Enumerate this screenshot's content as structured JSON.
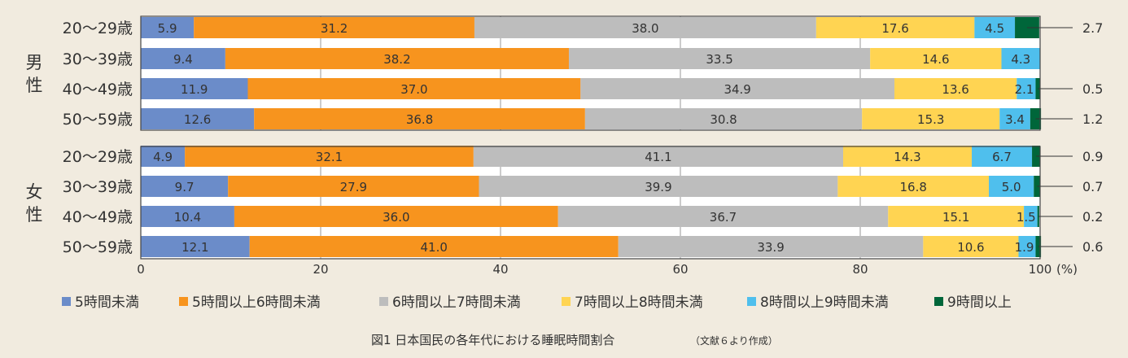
{
  "chart_data": {
    "type": "bar",
    "orientation": "horizontal",
    "stacked": true,
    "title": "図1 日本国民の各年代における睡眠時間割合",
    "source_note": "（文献６より作成）",
    "xlabel": "(%)",
    "xlim": [
      0,
      100
    ],
    "xticks": [
      0,
      20,
      40,
      60,
      80,
      100
    ],
    "grid": true,
    "legend_position": "bottom",
    "groups": [
      {
        "name": "男性",
        "categories": [
          "20〜29歳",
          "30〜39歳",
          "40〜49歳",
          "50〜59歳"
        ]
      },
      {
        "name": "女性",
        "categories": [
          "20〜29歳",
          "30〜39歳",
          "40〜49歳",
          "50〜59歳"
        ]
      }
    ],
    "series": [
      {
        "name": "5時間未満",
        "color": "#6b8cc9",
        "values": [
          [
            5.9,
            9.4,
            11.9,
            12.6
          ],
          [
            4.9,
            9.7,
            10.4,
            12.1
          ]
        ]
      },
      {
        "name": "5時間以上6時間未満",
        "color": "#f7941e",
        "values": [
          [
            31.2,
            38.2,
            37.0,
            36.8
          ],
          [
            32.1,
            27.9,
            36.0,
            41.0
          ]
        ]
      },
      {
        "name": "6時間以上7時間未満",
        "color": "#bdbdbd",
        "values": [
          [
            38.0,
            33.5,
            34.9,
            30.8
          ],
          [
            41.1,
            39.9,
            36.7,
            33.9
          ]
        ]
      },
      {
        "name": "7時間以上8時間未満",
        "color": "#ffd452",
        "values": [
          [
            17.6,
            14.6,
            13.6,
            15.3
          ],
          [
            14.3,
            16.8,
            15.1,
            10.6
          ]
        ]
      },
      {
        "name": "8時間以上9時間未満",
        "color": "#4fbfed",
        "values": [
          [
            4.5,
            4.3,
            2.1,
            3.4
          ],
          [
            6.7,
            5.0,
            1.5,
            1.9
          ]
        ]
      },
      {
        "name": "9時間以上",
        "color": "#00663a",
        "values": [
          [
            2.7,
            null,
            0.5,
            1.2
          ],
          [
            0.9,
            0.7,
            0.2,
            0.6
          ]
        ]
      }
    ]
  }
}
